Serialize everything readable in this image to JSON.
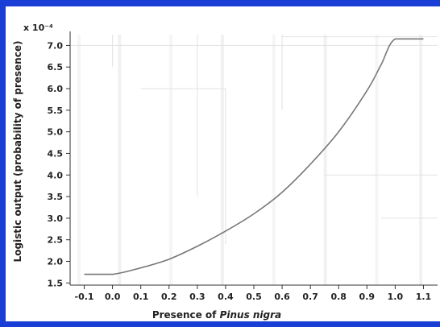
{
  "chart_data": {
    "type": "line",
    "title": "",
    "xlabel_prefix": "Presence of ",
    "xlabel_species": "Pinus nigra",
    "ylabel": "Logistic output (probability of presence)",
    "y_multiplier": "x 10⁻⁴",
    "xlim": [
      -0.15,
      1.15
    ],
    "ylim": [
      1.45,
      7.25
    ],
    "x_ticks": [
      -0.1,
      0.0,
      0.1,
      0.2,
      0.3,
      0.4,
      0.5,
      0.6,
      0.7,
      0.8,
      0.9,
      1.0,
      1.1
    ],
    "x_tick_labels": [
      "-0.1",
      "0.0",
      "0.1",
      "0.2",
      "0.3",
      "0.4",
      "0.5",
      "0.6",
      "0.7",
      "0.8",
      "0.9",
      "1.0",
      "1.1"
    ],
    "y_ticks": [
      1.5,
      2.0,
      2.5,
      3.0,
      3.5,
      4.0,
      4.5,
      5.0,
      5.5,
      6.0,
      6.5,
      7.0
    ],
    "y_tick_labels": [
      "1.5",
      "2.0",
      "2.5",
      "3.0",
      "3.5",
      "4.0",
      "4.5",
      "5.0",
      "5.5",
      "6.0",
      "6.5",
      "7.0"
    ],
    "series": [
      {
        "color": "#777777",
        "x": [
          -0.1,
          0.0,
          0.1,
          0.2,
          0.3,
          0.4,
          0.5,
          0.6,
          0.7,
          0.8,
          0.9,
          0.95,
          1.0,
          1.1
        ],
        "y": [
          1.7,
          1.7,
          1.85,
          2.05,
          2.35,
          2.7,
          3.1,
          3.6,
          4.25,
          5.0,
          5.95,
          6.55,
          7.15,
          7.15
        ]
      }
    ],
    "grid": false,
    "colors": {
      "background": "#1a3fd6",
      "panel": "#ffffff",
      "axis": "#333333"
    }
  }
}
